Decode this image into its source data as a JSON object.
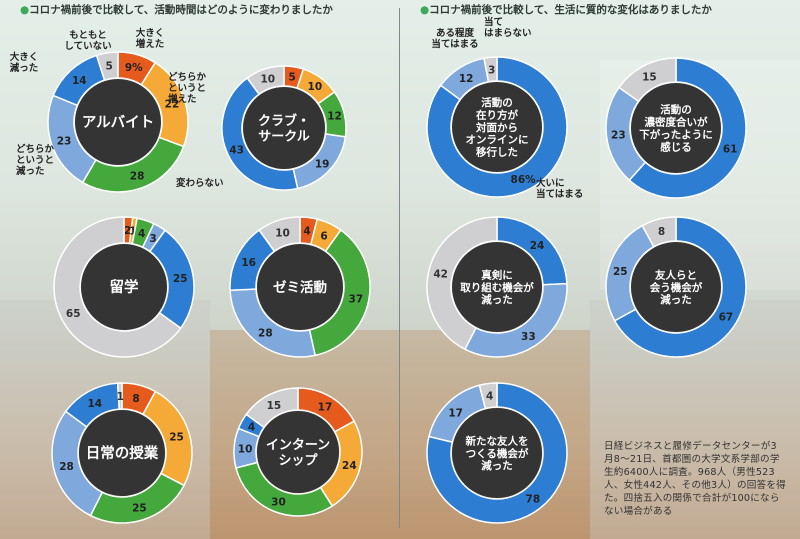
{
  "left_header": "コロナ禍前後で比較して、活動時間はどのように変わりましたか",
  "right_header": "コロナ禍前後で比較して、生活に質的な変化はありましたか",
  "note": "日経ビジネスと履修データセンターが3月8～21日、首都圏の大学文系学部の学生約6400人に調査。968人（男性523人、女性442人、その他3人）の回答を得た。四捨五入の関係で合計が100にならない場合がある",
  "colors": {
    "greatly_increased": "#e55a1d",
    "somewhat_increased": "#f5a937",
    "unchanged": "#45a83d",
    "somewhat_decreased": "#7fa8dc",
    "greatly_decreased": "#2d7dd2",
    "not_doing": "#cfcfd2",
    "center": "#343434"
  },
  "chart_data": [
    {
      "type": "pie",
      "title": "アルバイト",
      "categories": [
        "大きく増えた",
        "どちらかというと増えた",
        "変わらない",
        "どちらかというと減った",
        "大きく減った",
        "もともとしていない"
      ],
      "values": [
        9,
        22,
        28,
        23,
        14,
        5
      ],
      "labels": [
        "9%",
        "22",
        "28",
        "23",
        "14",
        "5"
      ],
      "legend_labels": {
        "greatly_increased": "大きく増えた",
        "somewhat_increased": "どちらかというと増えた",
        "unchanged": "変わらない",
        "somewhat_decreased": "どちらかというと減った",
        "greatly_decreased": "大きく減った",
        "not_doing": "もともとしていない"
      }
    },
    {
      "type": "pie",
      "title": "クラブ・サークル",
      "categories": [
        "大きく増えた",
        "どちらかというと増えた",
        "変わらない",
        "どちらかというと減った",
        "大きく減った",
        "もともとしていない"
      ],
      "values": [
        5,
        10,
        12,
        19,
        43,
        10
      ],
      "labels": [
        "5",
        "10",
        "12",
        "19",
        "43",
        "10"
      ]
    },
    {
      "type": "pie",
      "title": "留学",
      "categories": [
        "大きく増えた",
        "どちらかというと増えた",
        "変わらない",
        "どちらかというと減った",
        "大きく減った",
        "もともとしていない"
      ],
      "values": [
        2,
        1,
        4,
        3,
        25,
        65
      ],
      "labels": [
        "2",
        "1",
        "4",
        "3",
        "25",
        "65"
      ]
    },
    {
      "type": "pie",
      "title": "ゼミ活動",
      "categories": [
        "大きく増えた",
        "どちらかというと増えた",
        "変わらない",
        "どちらかというと減った",
        "大きく減った",
        "もともとしていない"
      ],
      "values": [
        4,
        6,
        37,
        28,
        16,
        10
      ],
      "labels": [
        "4",
        "6",
        "37",
        "28",
        "16",
        "10"
      ]
    },
    {
      "type": "pie",
      "title": "日常の授業",
      "categories": [
        "大きく増えた",
        "どちらかというと増えた",
        "変わらない",
        "どちらかというと減った",
        "大きく減った",
        "もともとしていない"
      ],
      "values": [
        8,
        25,
        25,
        28,
        14,
        1
      ],
      "labels": [
        "8",
        "25",
        "25",
        "28",
        "14",
        "1"
      ]
    },
    {
      "type": "pie",
      "title": "インターンシップ",
      "categories": [
        "大きく増えた",
        "どちらかというと増えた",
        "変わらない",
        "どちらかというと減った",
        "大きく減った",
        "もともとしていない"
      ],
      "values": [
        17,
        24,
        30,
        10,
        4,
        15
      ],
      "labels": [
        "17",
        "24",
        "30",
        "10",
        "4",
        "15"
      ]
    },
    {
      "type": "pie",
      "title": "活動の在り方が対面からオンラインに移行した",
      "categories": [
        "大いに当てはまる",
        "ある程度当てはまる",
        "当てはまらない"
      ],
      "values": [
        86,
        12,
        3
      ],
      "labels": [
        "86%",
        "12",
        "3"
      ],
      "legend_labels": {
        "strongly": "大いに当てはまる",
        "somewhat": "ある程度当てはまる",
        "not": "当てはまらない"
      }
    },
    {
      "type": "pie",
      "title": "活動の濃密度合いが下がったように感じる",
      "categories": [
        "大いに当てはまる",
        "ある程度当てはまる",
        "当てはまらない"
      ],
      "values": [
        61,
        23,
        15
      ],
      "labels": [
        "61",
        "23",
        "15"
      ]
    },
    {
      "type": "pie",
      "title": "真剣に取り組む機会が減った",
      "categories": [
        "大いに当てはまる",
        "ある程度当てはまる",
        "当てはまらない"
      ],
      "values": [
        24,
        33,
        42
      ],
      "labels": [
        "24",
        "33",
        "42"
      ]
    },
    {
      "type": "pie",
      "title": "友人らと会う機会が減った",
      "categories": [
        "大いに当てはまる",
        "ある程度当てはまる",
        "当てはまらない"
      ],
      "values": [
        67,
        25,
        8
      ],
      "labels": [
        "67",
        "25",
        "8"
      ]
    },
    {
      "type": "pie",
      "title": "新たな友人をつくる機会が減った",
      "categories": [
        "大いに当てはまる",
        "ある程度当てはまる",
        "当てはまらない"
      ],
      "values": [
        78,
        17,
        4
      ],
      "labels": [
        "78",
        "17",
        "4"
      ]
    }
  ]
}
